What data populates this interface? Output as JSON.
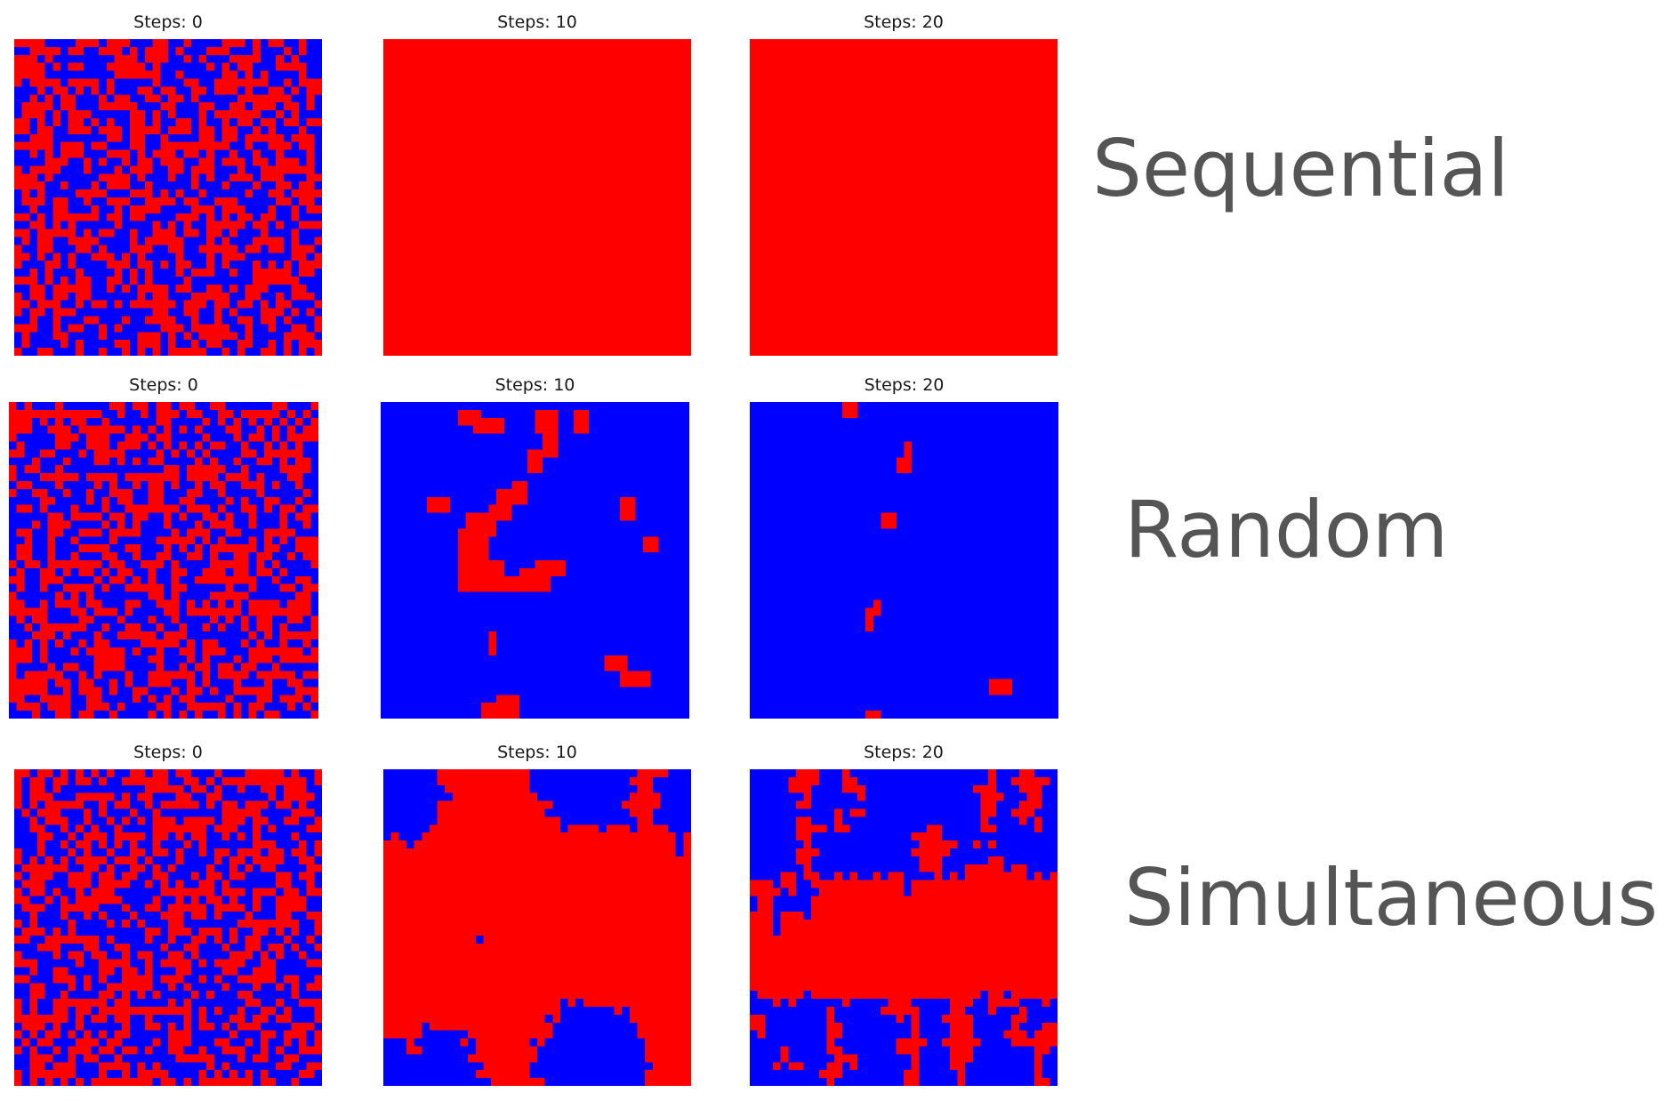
{
  "colors": {
    "state_a": "#ff0000",
    "state_b": "#0000ff",
    "row_label_color": "#555555"
  },
  "grid_size": 40,
  "rows": [
    {
      "label": "Sequential",
      "panels": [
        {
          "title": "Steps: 0",
          "state": "random_mix"
        },
        {
          "title": "Steps: 10",
          "state": "all_red"
        },
        {
          "title": "Steps: 20",
          "state": "all_red"
        }
      ]
    },
    {
      "label": "Random",
      "panels": [
        {
          "title": "Steps: 0",
          "state": "random_mix"
        },
        {
          "title": "Steps: 10",
          "state": "mostly_blue_with_red_clusters"
        },
        {
          "title": "Steps: 20",
          "state": "mostly_blue_sparse_red"
        }
      ]
    },
    {
      "label": "Simultaneous",
      "panels": [
        {
          "title": "Steps: 0",
          "state": "random_mix"
        },
        {
          "title": "Steps: 10",
          "state": "large_red_domain_blue_corners"
        },
        {
          "title": "Steps: 20",
          "state": "red_band_blue_domains"
        }
      ]
    }
  ]
}
